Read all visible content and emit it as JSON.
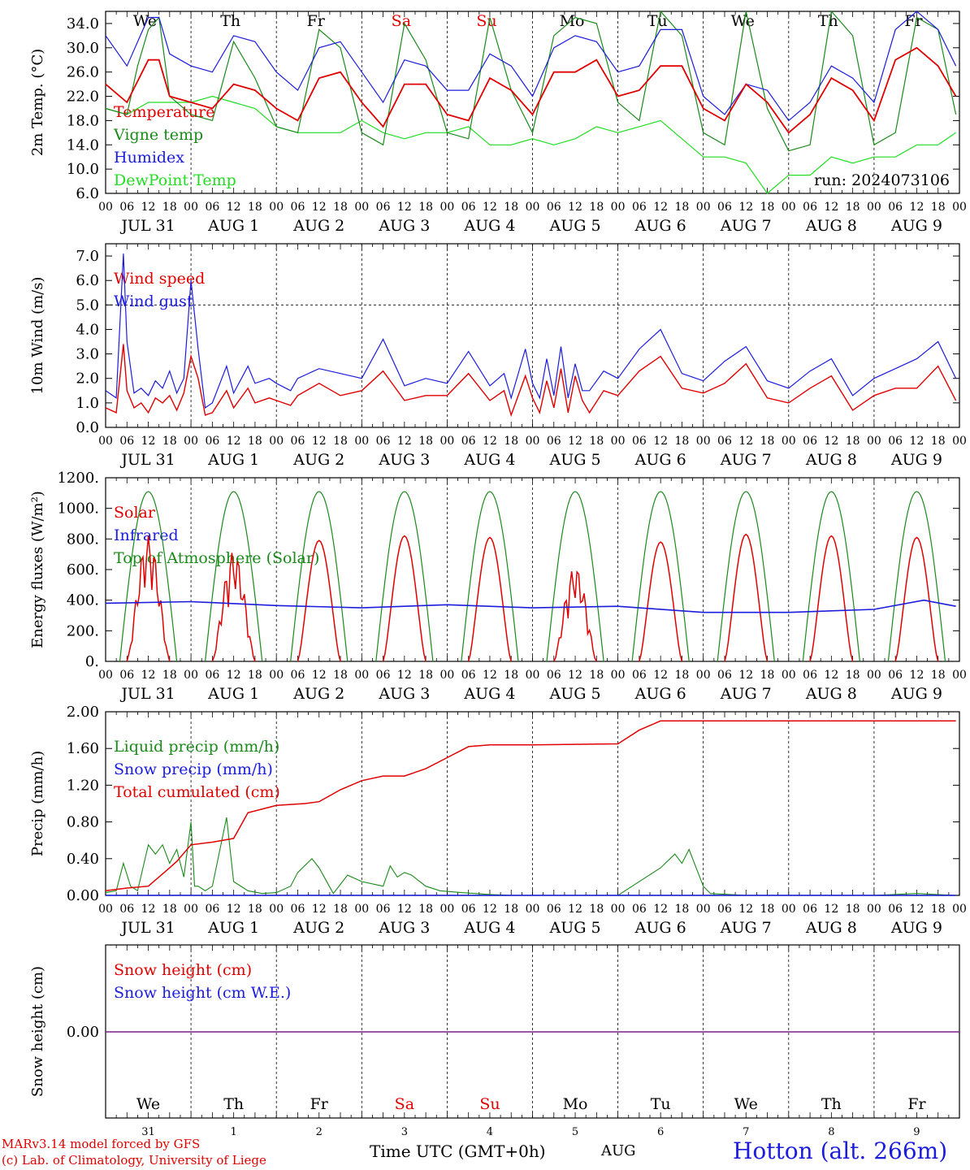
{
  "footer": {
    "model": "MARv3.14 model forced by GFS",
    "credit": "(c) Lab. of Climatology, University of Liege",
    "xlabel": "Time UTC (GMT+0h)",
    "month": "AUG",
    "station": "Hotton (alt. 266m)"
  },
  "time_axis": {
    "hour_ticks": [
      "00",
      "06",
      "12",
      "18"
    ],
    "days": [
      "JUL 31",
      "AUG  1",
      "AUG  2",
      "AUG  3",
      "AUG  4",
      "AUG  5",
      "AUG  6",
      "AUG  7",
      "AUG  8",
      "AUG  9"
    ],
    "weekdays": [
      "We",
      "Th",
      "Fr",
      "Sa",
      "Su",
      "Mo",
      "Tu",
      "We",
      "Th",
      "Fr"
    ],
    "weekend_color": "#e00000",
    "day_numbers": [
      "31",
      "1",
      "2",
      "3",
      "4",
      "5",
      "6",
      "7",
      "8",
      "9"
    ]
  },
  "colors": {
    "red": "#e00000",
    "green": "#1a8a1a",
    "blue": "#1c1cdc",
    "light_green": "#22dd22",
    "purple": "#7a1f8a"
  },
  "chart_data": [
    {
      "type": "line",
      "ylabel": "2m Temp. (°C)",
      "ylim": [
        6,
        36
      ],
      "yticks": [
        "6.0",
        "10.0",
        "14.0",
        "18.0",
        "22.0",
        "26.0",
        "30.0",
        "34.0"
      ],
      "annotation": "run: 2024073106",
      "x_unit": "hours since JUL 31 00 UTC",
      "series": [
        {
          "name": "Temperature",
          "color": "red",
          "x": [
            0,
            6,
            12,
            15,
            18,
            24,
            30,
            36,
            42,
            48,
            54,
            60,
            66,
            72,
            78,
            84,
            90,
            96,
            102,
            108,
            114,
            120,
            126,
            132,
            138,
            144,
            150,
            156,
            162,
            168,
            174,
            180,
            186,
            192,
            198,
            204,
            210,
            216,
            222,
            228,
            234,
            239
          ],
          "values": [
            24,
            21,
            28,
            28,
            22,
            21,
            20,
            24,
            23,
            20,
            18,
            25,
            26,
            21,
            17,
            24,
            24,
            19,
            18,
            25,
            23,
            19,
            26,
            26,
            28,
            22,
            23,
            27,
            27,
            20,
            18,
            24,
            21,
            16,
            19,
            25,
            23,
            18,
            28,
            30,
            27,
            22
          ]
        },
        {
          "name": "Vigne temp",
          "color": "green",
          "x": [
            0,
            6,
            9,
            12,
            15,
            18,
            24,
            30,
            36,
            42,
            48,
            54,
            60,
            66,
            72,
            78,
            84,
            90,
            96,
            102,
            108,
            114,
            120,
            126,
            132,
            138,
            144,
            150,
            156,
            162,
            168,
            174,
            180,
            186,
            192,
            198,
            204,
            210,
            216,
            222,
            228,
            234,
            239
          ],
          "values": [
            20,
            19,
            27,
            33,
            35,
            22,
            19,
            18,
            31,
            25,
            17,
            16,
            33,
            30,
            16,
            14,
            34,
            28,
            16,
            15,
            35,
            23,
            16,
            32,
            35,
            34,
            21,
            18,
            36,
            32,
            16,
            14,
            36,
            20,
            13,
            14,
            36,
            32,
            14,
            16,
            35,
            33,
            19
          ]
        },
        {
          "name": "Humidex",
          "color": "blue",
          "x": [
            0,
            6,
            12,
            15,
            18,
            24,
            30,
            36,
            42,
            48,
            54,
            60,
            66,
            72,
            78,
            84,
            90,
            96,
            102,
            108,
            114,
            120,
            126,
            132,
            138,
            144,
            150,
            156,
            162,
            168,
            174,
            180,
            186,
            192,
            198,
            204,
            210,
            216,
            222,
            228,
            234,
            239
          ],
          "values": [
            32,
            27,
            35,
            35,
            29,
            27,
            26,
            32,
            31,
            26,
            23,
            30,
            31,
            26,
            21,
            28,
            27,
            23,
            23,
            29,
            27,
            22,
            30,
            32,
            31,
            26,
            27,
            33,
            33,
            22,
            19,
            24,
            23,
            18,
            21,
            27,
            25,
            21,
            33,
            36,
            33,
            27
          ]
        },
        {
          "name": "DewPoint Temp",
          "color": "light_green",
          "x": [
            0,
            6,
            12,
            18,
            24,
            30,
            36,
            42,
            48,
            54,
            60,
            66,
            72,
            78,
            84,
            90,
            96,
            102,
            108,
            114,
            120,
            126,
            132,
            138,
            144,
            150,
            156,
            162,
            168,
            174,
            180,
            186,
            192,
            198,
            204,
            210,
            216,
            222,
            228,
            234,
            239
          ],
          "values": [
            20,
            19,
            21,
            21,
            21,
            22,
            21,
            20,
            17,
            16,
            16,
            16,
            18,
            16,
            15,
            16,
            16,
            17,
            14,
            14,
            15,
            14,
            15,
            17,
            16,
            17,
            18,
            15,
            12,
            12,
            11,
            6,
            9,
            9,
            12,
            11,
            12,
            12,
            14,
            14,
            16
          ]
        }
      ]
    },
    {
      "type": "line",
      "ylabel": "10m Wind (m/s)",
      "ylim": [
        0,
        7.5
      ],
      "yticks": [
        "0.0",
        "1.0",
        "2.0",
        "3.0",
        "4.0",
        "5.0",
        "6.0",
        "7.0"
      ],
      "hline": 5.0,
      "series": [
        {
          "name": "Wind speed",
          "color": "red",
          "x": [
            0,
            3,
            5,
            6,
            8,
            10,
            12,
            14,
            16,
            18,
            20,
            22,
            24,
            26,
            28,
            30,
            34,
            36,
            40,
            42,
            46,
            48,
            52,
            54,
            60,
            66,
            72,
            78,
            84,
            90,
            96,
            102,
            108,
            112,
            114,
            118,
            120,
            122,
            124,
            126,
            128,
            130,
            132,
            134,
            136,
            140,
            144,
            150,
            156,
            162,
            168,
            174,
            180,
            186,
            192,
            198,
            204,
            210,
            216,
            222,
            228,
            234,
            239
          ],
          "values": [
            0.8,
            0.6,
            3.4,
            1.5,
            0.8,
            1.0,
            0.6,
            1.2,
            1.0,
            1.3,
            0.7,
            1.4,
            2.9,
            2.0,
            0.5,
            0.6,
            1.5,
            0.8,
            1.6,
            1.0,
            1.2,
            1.1,
            0.9,
            1.3,
            1.8,
            1.3,
            1.5,
            2.3,
            1.1,
            1.3,
            1.3,
            2.2,
            1.1,
            1.5,
            0.5,
            2.1,
            1.2,
            0.6,
            1.9,
            0.8,
            2.4,
            0.6,
            2.1,
            1.1,
            0.6,
            1.5,
            1.3,
            2.3,
            2.9,
            1.6,
            1.4,
            1.8,
            2.6,
            1.2,
            1.0,
            1.6,
            2.1,
            0.7,
            1.3,
            1.6,
            1.6,
            2.5,
            1.1
          ]
        },
        {
          "name": "Wind gust",
          "color": "blue",
          "x": [
            0,
            3,
            5,
            6,
            8,
            10,
            12,
            14,
            16,
            18,
            20,
            22,
            24,
            26,
            28,
            30,
            34,
            36,
            40,
            42,
            46,
            48,
            52,
            54,
            60,
            66,
            72,
            78,
            84,
            90,
            96,
            102,
            108,
            112,
            114,
            118,
            120,
            122,
            124,
            126,
            128,
            130,
            132,
            134,
            136,
            140,
            144,
            150,
            156,
            162,
            168,
            174,
            180,
            186,
            192,
            198,
            204,
            210,
            216,
            222,
            228,
            234,
            239
          ],
          "values": [
            1.5,
            1.2,
            7.1,
            3.5,
            1.4,
            1.6,
            1.3,
            1.9,
            1.6,
            2.3,
            1.4,
            2.0,
            6.0,
            3.2,
            0.8,
            1.0,
            2.5,
            1.4,
            2.5,
            1.8,
            2.0,
            1.8,
            1.5,
            2.0,
            2.4,
            2.2,
            2.0,
            3.6,
            1.7,
            2.0,
            1.8,
            3.1,
            1.7,
            2.2,
            1.2,
            3.2,
            1.8,
            1.2,
            2.8,
            1.3,
            3.3,
            1.2,
            2.6,
            1.5,
            1.5,
            2.3,
            2.0,
            3.2,
            4.0,
            2.2,
            1.9,
            2.7,
            3.3,
            1.9,
            1.6,
            2.3,
            2.8,
            1.3,
            2.0,
            2.4,
            2.8,
            3.5,
            2.0
          ]
        }
      ]
    },
    {
      "type": "line",
      "ylabel": "Energy fluxes (W/m²)",
      "ylim": [
        0,
        1200
      ],
      "yticks": [
        "0.",
        "200.",
        "400.",
        "600.",
        "800.",
        "1000.",
        "1200."
      ],
      "solar_peaks": [
        820,
        720,
        790,
        820,
        810,
        620,
        780,
        830,
        820,
        810
      ],
      "series": [
        {
          "name": "Solar",
          "color": "red"
        },
        {
          "name": "Infrared",
          "color": "blue",
          "x": [
            0,
            24,
            48,
            72,
            96,
            120,
            144,
            168,
            192,
            216,
            230,
            239
          ],
          "values": [
            380,
            390,
            365,
            350,
            370,
            350,
            360,
            320,
            320,
            340,
            400,
            360
          ]
        },
        {
          "name": "Top of Atmosphere (Solar)",
          "color": "green",
          "peak": 1110,
          "sunrise": 4,
          "sunset": 20
        }
      ]
    },
    {
      "type": "line",
      "ylabel": "Precip (mm/h)",
      "ylim": [
        0,
        2.0
      ],
      "yticks": [
        "0.00",
        "0.40",
        "0.80",
        "1.20",
        "1.60",
        "2.00"
      ],
      "series": [
        {
          "name": "Liquid precip (mm/h)",
          "color": "green",
          "x": [
            0,
            3,
            5,
            7,
            9,
            12,
            14,
            16,
            18,
            20,
            22,
            24,
            25,
            26,
            28,
            30,
            34,
            36,
            40,
            44,
            48,
            52,
            54,
            58,
            60,
            64,
            68,
            72,
            78,
            80,
            82,
            84,
            86,
            90,
            94,
            100,
            108,
            114,
            120,
            132,
            144,
            156,
            160,
            162,
            164,
            166,
            168,
            170,
            180,
            216,
            228,
            239
          ],
          "values": [
            0.03,
            0.05,
            0.35,
            0.1,
            0.05,
            0.55,
            0.45,
            0.55,
            0.35,
            0.5,
            0.2,
            0.8,
            0.1,
            0.1,
            0.05,
            0.1,
            0.85,
            0.15,
            0.05,
            0.02,
            0.03,
            0.1,
            0.25,
            0.4,
            0.3,
            0.02,
            0.22,
            0.15,
            0.1,
            0.32,
            0.2,
            0.25,
            0.22,
            0.1,
            0.05,
            0.03,
            0.01,
            0,
            0,
            0,
            0,
            0.3,
            0.45,
            0.35,
            0.5,
            0.3,
            0.1,
            0.02,
            0,
            0,
            0.02,
            0
          ]
        },
        {
          "name": "Snow precip (mm/h)",
          "color": "blue",
          "x": [
            0,
            239
          ],
          "values": [
            0,
            0
          ]
        },
        {
          "name": "Total cumulated (cm)",
          "color": "red",
          "x": [
            0,
            6,
            12,
            18,
            20,
            24,
            30,
            36,
            40,
            48,
            56,
            60,
            66,
            72,
            78,
            84,
            90,
            96,
            102,
            108,
            120,
            144,
            150,
            156,
            239
          ],
          "values": [
            0.05,
            0.08,
            0.1,
            0.3,
            0.37,
            0.55,
            0.58,
            0.62,
            0.9,
            0.98,
            1.0,
            1.02,
            1.15,
            1.25,
            1.3,
            1.3,
            1.38,
            1.5,
            1.62,
            1.64,
            1.64,
            1.65,
            1.8,
            1.9,
            1.9
          ]
        }
      ]
    },
    {
      "type": "line",
      "ylabel": "Snow height (cm)",
      "yticks": [
        "0.00"
      ],
      "series": [
        {
          "name": "Snow height (cm)",
          "color": "red",
          "x": [
            0,
            239
          ],
          "values": [
            0,
            0
          ]
        },
        {
          "name": "Snow height (cm W.E.)",
          "color": "blue",
          "x": [
            0,
            239
          ],
          "values": [
            0,
            0
          ]
        }
      ]
    }
  ]
}
